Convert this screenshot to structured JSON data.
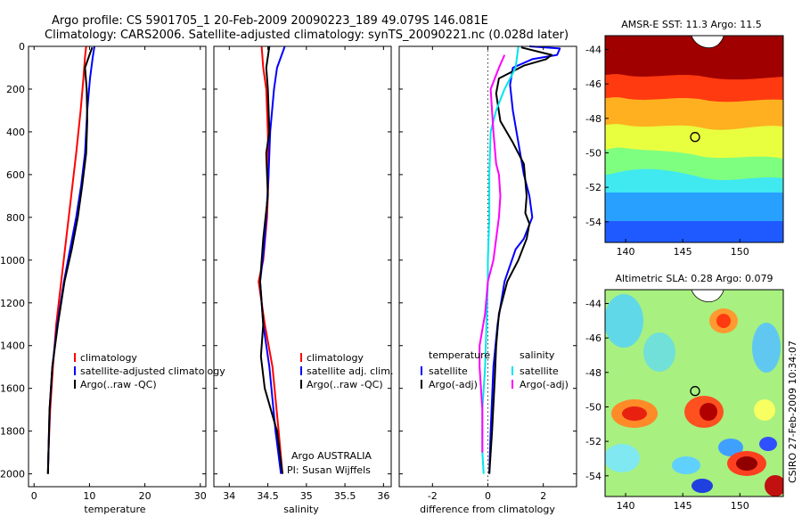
{
  "figure": {
    "title_line1": "Argo profile: CS 5901705_1 20-Feb-2009 20090223_189 49.079S 146.081E",
    "title_line2": "Climatology: CARS2006. Satellite-adjusted climatology: synTS_20090221.nc (0.028d later)",
    "side_label": "CSIRO 27-Feb-2009 10:34:07",
    "attribution_line1": "Argo AUSTRALIA",
    "attribution_line2": "PI: Susan Wijffels"
  },
  "colors": {
    "climatology": "#ff0000",
    "satellite": "#0000ff",
    "argo": "#000000",
    "temp_diff_sat": "#0000ff",
    "temp_diff_argo": "#000000",
    "sal_diff_sat": "#00e5ee",
    "sal_diff_argo": "#ff00ff"
  },
  "chart_data": [
    {
      "type": "line",
      "xlabel": "temperature",
      "xlim": [
        -1,
        31
      ],
      "ylim": [
        0,
        2060
      ],
      "y_reversed": true,
      "xticks": [
        "0",
        "10",
        "20",
        "30"
      ],
      "yticks": [
        "0",
        "200",
        "400",
        "600",
        "800",
        "1000",
        "1200",
        "1400",
        "1600",
        "1800",
        "2000"
      ],
      "legend": [
        "climatology",
        "satellite-adjusted climatology",
        "Argo(..raw -QC)"
      ],
      "series": [
        {
          "name": "climatology",
          "x": [
            9.4,
            9.2,
            8.9,
            8.4,
            7.6,
            6.7,
            5.8,
            4.9,
            4.0,
            3.4,
            2.9,
            2.6,
            2.5
          ],
          "y": [
            0,
            50,
            150,
            300,
            500,
            700,
            900,
            1100,
            1300,
            1500,
            1700,
            1900,
            2000
          ]
        },
        {
          "name": "satellite-adjusted climatology",
          "x": [
            10.9,
            10.6,
            10.1,
            9.6,
            9.2,
            8.5,
            7.6,
            6.5,
            5.4,
            4.2,
            3.3,
            2.8,
            2.6,
            2.5
          ],
          "y": [
            0,
            50,
            150,
            300,
            500,
            650,
            800,
            950,
            1100,
            1300,
            1500,
            1700,
            1900,
            2000
          ]
        },
        {
          "name": "Argo(..raw -QC)",
          "x": [
            10.5,
            10.0,
            9.2,
            9.5,
            9.6,
            9.4,
            8.7,
            7.9,
            6.8,
            5.5,
            4.3,
            3.3,
            2.8,
            2.5
          ],
          "y": [
            5,
            40,
            100,
            200,
            350,
            500,
            650,
            800,
            950,
            1100,
            1300,
            1500,
            1700,
            2000
          ]
        }
      ]
    },
    {
      "type": "line",
      "xlabel": "salinity",
      "xlim": [
        33.8,
        36.1
      ],
      "ylim": [
        0,
        2060
      ],
      "y_reversed": true,
      "xticks": [
        "34",
        "34.5",
        "35",
        "35.5",
        "36"
      ],
      "legend": [
        "climatology",
        "satellite adj. clim.",
        "Argo(..raw -QC)"
      ],
      "series": [
        {
          "name": "climatology",
          "x": [
            34.42,
            34.44,
            34.48,
            34.5,
            34.51,
            34.49,
            34.44,
            34.38,
            34.46,
            34.56,
            34.64,
            34.69
          ],
          "y": [
            0,
            100,
            200,
            400,
            600,
            800,
            1000,
            1100,
            1300,
            1500,
            1800,
            2000
          ]
        },
        {
          "name": "satellite adj. clim.",
          "x": [
            34.72,
            34.62,
            34.58,
            34.53,
            34.51,
            34.48,
            34.45,
            34.4,
            34.44,
            34.52,
            34.6,
            34.67
          ],
          "y": [
            0,
            100,
            200,
            400,
            600,
            800,
            950,
            1100,
            1300,
            1500,
            1800,
            2000
          ]
        },
        {
          "name": "Argo(..raw -QC)",
          "x": [
            34.52,
            34.48,
            34.5,
            34.52,
            34.48,
            34.5,
            34.44,
            34.4,
            34.44,
            34.41,
            34.46,
            34.62,
            34.69
          ],
          "y": [
            0,
            100,
            200,
            400,
            500,
            700,
            900,
            1100,
            1300,
            1450,
            1600,
            1800,
            2000
          ]
        }
      ]
    },
    {
      "type": "line",
      "xlabel": "difference from climatology",
      "xlim": [
        -3.2,
        3.2
      ],
      "ylim": [
        0,
        2060
      ],
      "y_reversed": true,
      "xticks": [
        "-2",
        "0",
        "2"
      ],
      "zero_line": true,
      "legend_groups": [
        {
          "title": "temperature",
          "items": [
            "satellite",
            "Argo(-adj)"
          ]
        },
        {
          "title": "salinity",
          "items": [
            "satellite",
            "Argo(-adj)"
          ]
        }
      ],
      "series": [
        {
          "name": "temperature satellite",
          "x": [
            1.5,
            2.6,
            2.5,
            1.6,
            0.9,
            0.8,
            0.9,
            1.1,
            1.3,
            1.5,
            1.6,
            1.3,
            1.0,
            0.6,
            0.35,
            0.2,
            0.1,
            0.05
          ],
          "y": [
            0,
            10,
            40,
            60,
            100,
            180,
            300,
            450,
            600,
            700,
            800,
            900,
            950,
            1100,
            1300,
            1500,
            1800,
            2000
          ]
        },
        {
          "name": "temperature Argo(-adj)",
          "x": [
            1.2,
            2.3,
            2.1,
            1.3,
            0.4,
            0.3,
            0.45,
            0.9,
            1.3,
            1.4,
            1.35,
            1.5,
            1.4,
            1.1,
            0.7,
            0.4,
            0.3,
            0.25,
            0.15,
            0.05
          ],
          "y": [
            5,
            40,
            60,
            90,
            150,
            220,
            350,
            450,
            550,
            700,
            780,
            830,
            900,
            1000,
            1100,
            1250,
            1400,
            1550,
            1800,
            2000
          ]
        },
        {
          "name": "salinity satellite",
          "x": [
            1.1,
            1.0,
            0.6,
            0.3,
            0.1,
            0.05,
            0.05,
            0.0,
            0.0,
            -0.05,
            -0.1,
            -0.2,
            -0.2,
            -0.15
          ],
          "y": [
            0,
            100,
            200,
            300,
            400,
            600,
            800,
            1000,
            1100,
            1300,
            1500,
            1700,
            1900,
            2000
          ]
        },
        {
          "name": "salinity Argo(-adj)",
          "x": [
            0.6,
            0.4,
            0.1,
            0.2,
            0.3,
            0.4,
            0.45,
            0.4,
            0.2,
            0.0,
            -0.1,
            -0.3,
            -0.3,
            -0.2,
            -0.2
          ],
          "y": [
            40,
            100,
            200,
            400,
            550,
            600,
            700,
            800,
            1000,
            1100,
            1250,
            1400,
            1500,
            1700,
            1900
          ]
        }
      ]
    },
    {
      "type": "heatmap",
      "title": "AMSR-E SST: 11.3 Argo: 11.5",
      "xlim": [
        138.2,
        153.8
      ],
      "ylim": [
        -55.2,
        -43.2
      ],
      "xticks": [
        "140",
        "145",
        "150"
      ],
      "yticks": [
        "-44",
        "-46",
        "-48",
        "-50",
        "-52",
        "-54"
      ],
      "profile_location": {
        "lon": 146.081,
        "lat": -49.079
      }
    },
    {
      "type": "heatmap",
      "title": "Altimetric SLA: 0.28 Argo: 0.079",
      "xlim": [
        138.2,
        153.8
      ],
      "ylim": [
        -55.2,
        -43.2
      ],
      "xticks": [
        "140",
        "145",
        "150"
      ],
      "yticks": [
        "-44",
        "-46",
        "-48",
        "-50",
        "-52",
        "-54"
      ],
      "profile_location": {
        "lon": 146.081,
        "lat": -49.079
      }
    }
  ]
}
